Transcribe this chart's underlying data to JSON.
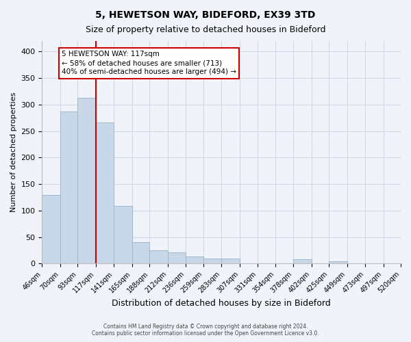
{
  "title": "5, HEWETSON WAY, BIDEFORD, EX39 3TD",
  "subtitle": "Size of property relative to detached houses in Bideford",
  "xlabel": "Distribution of detached houses by size in Bideford",
  "ylabel": "Number of detached properties",
  "footer_line1": "Contains HM Land Registry data © Crown copyright and database right 2024.",
  "footer_line2": "Contains public sector information licensed under the Open Government Licence v3.0.",
  "bin_labels": [
    "46sqm",
    "70sqm",
    "93sqm",
    "117sqm",
    "141sqm",
    "165sqm",
    "188sqm",
    "212sqm",
    "236sqm",
    "259sqm",
    "283sqm",
    "307sqm",
    "331sqm",
    "354sqm",
    "378sqm",
    "402sqm",
    "425sqm",
    "449sqm",
    "473sqm",
    "497sqm",
    "520sqm"
  ],
  "bar_values": [
    130,
    287,
    313,
    267,
    109,
    41,
    25,
    21,
    14,
    10,
    9,
    0,
    0,
    0,
    8,
    0,
    5,
    0,
    0,
    0
  ],
  "bin_edges": [
    46,
    70,
    93,
    117,
    141,
    165,
    188,
    212,
    236,
    259,
    283,
    307,
    331,
    354,
    378,
    402,
    425,
    449,
    473,
    497,
    520
  ],
  "property_line_x": 117,
  "bar_color": "#c8d8e8",
  "bar_edge_color": "#a0b8cc",
  "line_color": "#cc0000",
  "annotation_line1": "5 HEWETSON WAY: 117sqm",
  "annotation_line2": "← 58% of detached houses are smaller (713)",
  "annotation_line3": "40% of semi-detached houses are larger (494) →",
  "annotation_border_color": "#cc0000",
  "annotation_bg": "#ffffff",
  "ylim": [
    0,
    420
  ],
  "yticks": [
    0,
    50,
    100,
    150,
    200,
    250,
    300,
    350,
    400
  ],
  "bg_color": "#f0f4fa",
  "grid_color": "#d0d8e8",
  "title_fontsize": 10,
  "subtitle_fontsize": 9
}
